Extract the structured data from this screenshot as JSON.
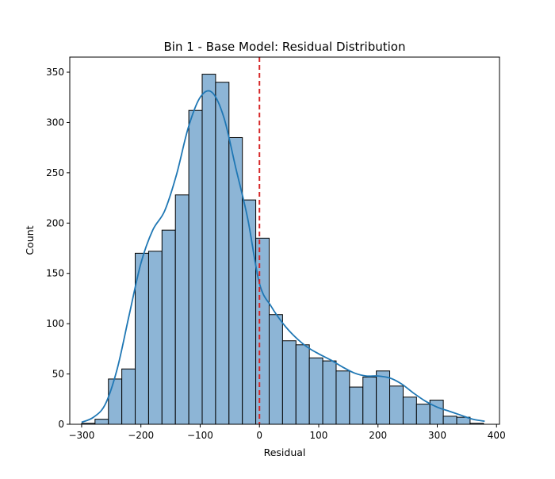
{
  "chart_data": {
    "type": "bar",
    "title": "Bin 1 - Base Model: Residual Distribution",
    "xlabel": "Residual",
    "ylabel": "Count",
    "xlim": [
      -320,
      405
    ],
    "ylim": [
      0,
      365
    ],
    "xticks": [
      -300,
      -200,
      -100,
      0,
      100,
      200,
      300,
      400
    ],
    "yticks": [
      0,
      50,
      100,
      150,
      200,
      250,
      300,
      350
    ],
    "grid": false,
    "bin_edges": [
      -300,
      -277.4,
      -254.8,
      -232.2,
      -209.6,
      -187.0,
      -164.4,
      -141.8,
      -119.2,
      -96.6,
      -74.0,
      -51.4,
      -28.8,
      -6.2,
      16.4,
      39.0,
      61.6,
      84.2,
      106.8,
      129.4,
      152.0,
      174.6,
      197.2,
      219.8,
      242.4,
      265.0,
      287.6,
      310.2,
      332.8,
      355.4,
      378.0
    ],
    "counts": [
      1,
      5,
      45,
      55,
      170,
      172,
      193,
      228,
      312,
      348,
      340,
      285,
      223,
      185,
      109,
      83,
      79,
      66,
      63,
      53,
      37,
      47,
      53,
      38,
      27,
      20,
      24,
      8,
      7,
      1
    ],
    "kde": {
      "x": [
        -300,
        -280,
        -260,
        -240,
        -220,
        -200,
        -180,
        -160,
        -140,
        -120,
        -100,
        -80,
        -60,
        -40,
        -20,
        0,
        20,
        40,
        60,
        80,
        100,
        120,
        140,
        160,
        180,
        200,
        220,
        240,
        260,
        280,
        300,
        320,
        340,
        360,
        380
      ],
      "y": [
        2,
        7,
        20,
        55,
        108,
        160,
        193,
        212,
        248,
        295,
        325,
        330,
        305,
        255,
        205,
        140,
        117,
        100,
        87,
        77,
        70,
        64,
        57,
        51,
        48,
        48,
        46,
        40,
        31,
        23,
        17,
        13,
        9,
        5,
        3
      ]
    },
    "reference_line": {
      "x": 0,
      "style": "dashed",
      "color": "#d62728"
    },
    "colors": {
      "bar_fill": "#8db5d6",
      "bar_edge": "#000000",
      "kde_line": "#1f77b4"
    }
  }
}
